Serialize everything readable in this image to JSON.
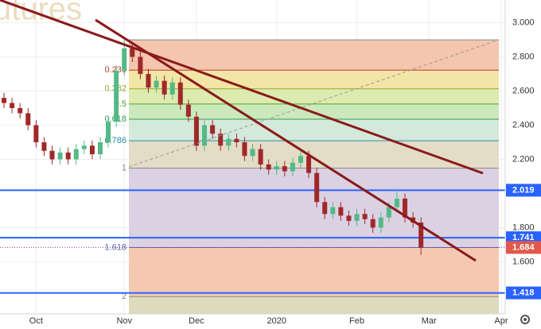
{
  "chart_data": {
    "type": "candlestick",
    "watermark": "utures",
    "categories": [
      null,
      null,
      null,
      null,
      "Oct",
      null,
      null,
      null,
      null,
      null,
      null,
      null,
      null,
      null,
      null,
      "Nov",
      null,
      null,
      null,
      null,
      null,
      null,
      null,
      null,
      "Dec",
      null,
      null,
      null,
      null,
      null,
      null,
      null,
      null,
      null,
      "2020",
      null,
      null,
      null,
      null,
      null,
      null,
      null,
      null,
      null,
      "Feb",
      null,
      null,
      null,
      null,
      null,
      null,
      null,
      null,
      "Mar",
      null,
      null,
      null,
      null,
      null,
      null,
      null,
      null,
      "Apr"
    ],
    "open": [
      2.56,
      2.53,
      2.5,
      2.47,
      2.4,
      2.3,
      2.25,
      2.2,
      2.24,
      2.2,
      2.26,
      2.28,
      2.23,
      2.3,
      2.42,
      2.72,
      2.85,
      2.8,
      2.7,
      2.62,
      2.66,
      2.58,
      2.65,
      2.52,
      2.45,
      2.28,
      2.4,
      2.35,
      2.28,
      2.32,
      2.3,
      2.22,
      2.26,
      2.17,
      2.14,
      2.16,
      2.13,
      2.18,
      2.22,
      2.12,
      1.95,
      1.88,
      1.92,
      1.87,
      1.84,
      1.88,
      1.85,
      1.8,
      1.86,
      1.92,
      1.97,
      1.86,
      1.83,
      null,
      null,
      null,
      null,
      null,
      null,
      null,
      null,
      null,
      null
    ],
    "high": [
      2.59,
      2.56,
      2.53,
      2.5,
      2.43,
      2.33,
      2.28,
      2.27,
      2.27,
      2.29,
      2.31,
      2.31,
      2.33,
      2.45,
      2.75,
      2.9,
      2.88,
      2.83,
      2.73,
      2.69,
      2.69,
      2.68,
      2.68,
      2.55,
      2.48,
      2.43,
      2.43,
      2.38,
      2.35,
      2.35,
      2.33,
      2.29,
      2.29,
      2.2,
      2.19,
      2.19,
      2.21,
      2.25,
      2.25,
      2.15,
      1.98,
      1.95,
      1.95,
      1.9,
      1.91,
      1.91,
      1.88,
      1.89,
      1.95,
      2.02,
      2.0,
      1.89,
      1.86,
      null,
      null,
      null,
      null,
      null,
      null,
      null,
      null,
      null,
      null
    ],
    "low": [
      2.5,
      2.47,
      2.44,
      2.37,
      2.27,
      2.22,
      2.17,
      2.17,
      2.17,
      2.17,
      2.23,
      2.2,
      2.2,
      2.27,
      2.39,
      2.69,
      2.77,
      2.67,
      2.59,
      2.59,
      2.55,
      2.55,
      2.49,
      2.42,
      2.25,
      2.25,
      2.32,
      2.25,
      2.25,
      2.27,
      2.19,
      2.19,
      2.14,
      2.11,
      2.11,
      2.1,
      2.1,
      2.15,
      2.09,
      1.92,
      1.85,
      1.85,
      1.84,
      1.81,
      1.81,
      1.82,
      1.77,
      1.77,
      1.83,
      1.89,
      1.83,
      1.8,
      1.64,
      null,
      null,
      null,
      null,
      null,
      null,
      null,
      null,
      null,
      null
    ],
    "close": [
      2.53,
      2.5,
      2.47,
      2.4,
      2.3,
      2.25,
      2.2,
      2.24,
      2.2,
      2.26,
      2.28,
      2.23,
      2.3,
      2.42,
      2.72,
      2.85,
      2.8,
      2.7,
      2.62,
      2.66,
      2.58,
      2.65,
      2.52,
      2.45,
      2.28,
      2.4,
      2.35,
      2.28,
      2.32,
      2.3,
      2.22,
      2.26,
      2.17,
      2.14,
      2.16,
      2.13,
      2.18,
      2.22,
      2.12,
      1.95,
      1.88,
      1.92,
      1.87,
      1.84,
      1.88,
      1.85,
      1.8,
      1.86,
      1.92,
      1.97,
      1.86,
      1.83,
      1.684,
      null,
      null,
      null,
      null,
      null,
      null,
      null,
      null,
      null,
      null
    ],
    "up_color": "#53b987",
    "down_color": "#a0282a",
    "ylim": [
      1.295,
      3.133
    ],
    "yticks": [
      {
        "value": 1.6,
        "label": "1.600"
      },
      {
        "value": 1.8,
        "label": "1.800"
      },
      {
        "value": 2.2,
        "label": "2.200"
      },
      {
        "value": 2.4,
        "label": "2.400"
      },
      {
        "value": 2.6,
        "label": "2.600"
      },
      {
        "value": 2.8,
        "label": "2.800"
      },
      {
        "value": 3.0,
        "label": "3.000"
      }
    ],
    "grid": true,
    "fib": {
      "high": 2.9,
      "low": 2.148,
      "levels": [
        0,
        0.236,
        0.382,
        0.5,
        0.618,
        0.786,
        1,
        1.618,
        2
      ],
      "colors": [
        "#f4c6ae",
        "#f1e6a6",
        "#dcebb0",
        "#cbe9bd",
        "#d3e9d9",
        "#e3dcc6",
        "#dad2e2",
        "#f5c9b1",
        "#dcdcbc"
      ],
      "label_colors": [
        "#888888",
        "#c0392b",
        "#9aa52a",
        "#5aa02c",
        "#2e9e4f",
        "#2a8fb0",
        "#888888",
        "#5a6ab0",
        "#888888"
      ]
    },
    "price_lines": [
      {
        "value": 2.019,
        "label": "2.019",
        "color": "#2962ff"
      },
      {
        "value": 1.741,
        "label": "1.741",
        "color": "#2962ff"
      },
      {
        "value": 1.418,
        "label": "1.418",
        "color": "#2962ff"
      }
    ],
    "last_price": {
      "value": 1.684,
      "label": "1.684",
      "color": "#e0594b"
    }
  }
}
